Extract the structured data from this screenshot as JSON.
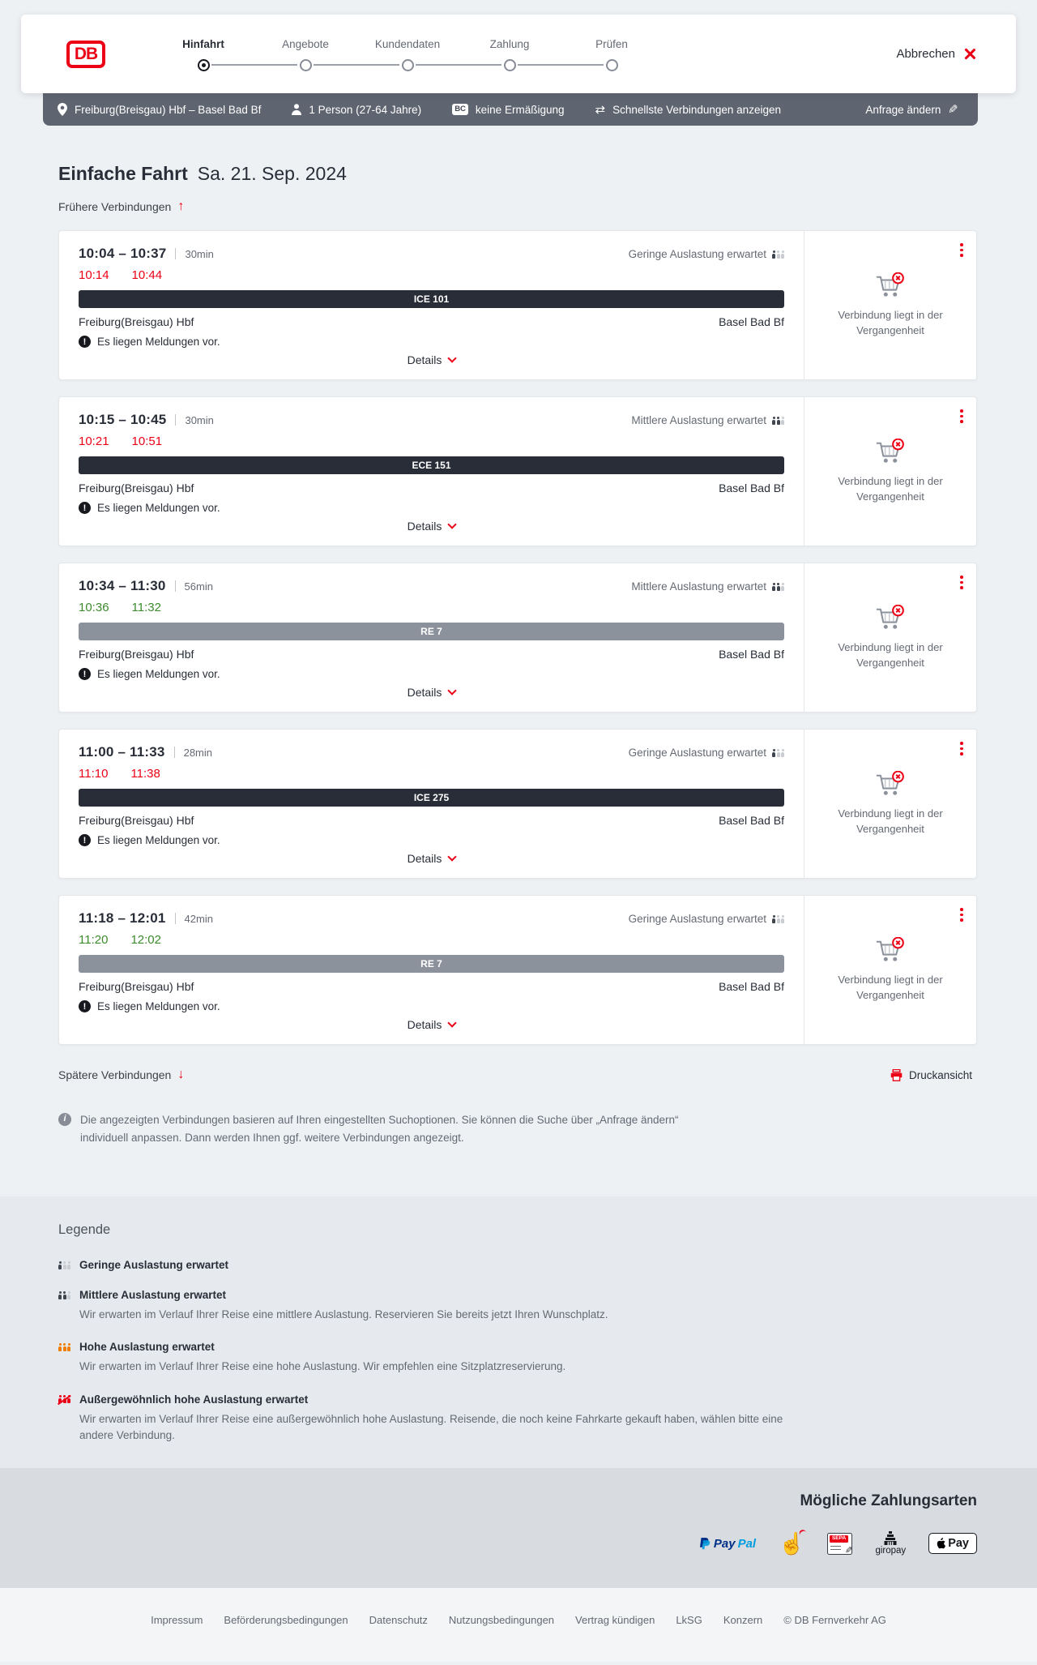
{
  "header": {
    "logo": "DB",
    "steps": [
      {
        "label": "Hinfahrt",
        "state": "active"
      },
      {
        "label": "Angebote",
        "state": "upcoming"
      },
      {
        "label": "Kundendaten",
        "state": "upcoming"
      },
      {
        "label": "Zahlung",
        "state": "upcoming"
      },
      {
        "label": "Prüfen",
        "state": "upcoming"
      }
    ],
    "cancel_label": "Abbrechen"
  },
  "tripbar": {
    "route": "Freiburg(Breisgau) Hbf – Basel Bad Bf",
    "passengers": "1 Person (27-64 Jahre)",
    "bc_badge": "BC",
    "discount": "keine Ermäßigung",
    "fastest": "Schnellste Verbindungen anzeigen",
    "change_request": "Anfrage ändern"
  },
  "results": {
    "title": "Einfache Fahrt",
    "date": "Sa. 21. Sep. 2024",
    "earlier": "Frühere Verbindungen",
    "later": "Spätere Verbindungen",
    "print": "Druckansicht",
    "info_note": "Die angezeigten Verbindungen basieren auf Ihren eingestellten Suchoptionen. Sie können die Suche über „Anfrage ändern“ individuell anpassen. Dann werden Ihnen ggf. weitere Verbindungen angezeigt."
  },
  "connections": [
    {
      "times": "10:04 – 10:37",
      "duration": "30min",
      "actual_dep": "10:14",
      "actual_arr": "10:44",
      "time_style": "t-red",
      "train": "ICE 101",
      "bar_style": "bar-dark",
      "from": "Freiburg(Breisgau) Hbf",
      "to": "Basel Bad Bf",
      "occupancy": "Geringe Auslastung erwartet",
      "occupancy_level": "occ-low",
      "message": "Es liegen Meldungen vor.",
      "details_label": "Details",
      "past_note": "Verbindung liegt in der Vergangenheit"
    },
    {
      "times": "10:15 – 10:45",
      "duration": "30min",
      "actual_dep": "10:21",
      "actual_arr": "10:51",
      "time_style": "t-red",
      "train": "ECE 151",
      "bar_style": "bar-dark",
      "from": "Freiburg(Breisgau) Hbf",
      "to": "Basel Bad Bf",
      "occupancy": "Mittlere Auslastung erwartet",
      "occupancy_level": "occ-medium",
      "message": "Es liegen Meldungen vor.",
      "details_label": "Details",
      "past_note": "Verbindung liegt in der Vergangenheit"
    },
    {
      "times": "10:34 – 11:30",
      "duration": "56min",
      "actual_dep": "10:36",
      "actual_arr": "11:32",
      "time_style": "t-green",
      "train": "RE 7",
      "bar_style": "bar-gray",
      "from": "Freiburg(Breisgau) Hbf",
      "to": "Basel Bad Bf",
      "occupancy": "Mittlere Auslastung erwartet",
      "occupancy_level": "occ-medium",
      "message": "Es liegen Meldungen vor.",
      "details_label": "Details",
      "past_note": "Verbindung liegt in der Vergangenheit"
    },
    {
      "times": "11:00 – 11:33",
      "duration": "28min",
      "actual_dep": "11:10",
      "actual_arr": "11:38",
      "time_style": "t-red",
      "train": "ICE 275",
      "bar_style": "bar-dark",
      "from": "Freiburg(Breisgau) Hbf",
      "to": "Basel Bad Bf",
      "occupancy": "Geringe Auslastung erwartet",
      "occupancy_level": "occ-low",
      "message": "Es liegen Meldungen vor.",
      "details_label": "Details",
      "past_note": "Verbindung liegt in der Vergangenheit"
    },
    {
      "times": "11:18 – 12:01",
      "duration": "42min",
      "actual_dep": "11:20",
      "actual_arr": "12:02",
      "time_style": "t-green",
      "train": "RE 7",
      "bar_style": "bar-gray",
      "from": "Freiburg(Breisgau) Hbf",
      "to": "Basel Bad Bf",
      "occupancy": "Geringe Auslastung erwartet",
      "occupancy_level": "occ-low",
      "message": "Es liegen Meldungen vor.",
      "details_label": "Details",
      "past_note": "Verbindung liegt in der Vergangenheit"
    }
  ],
  "legend": {
    "title": "Legende",
    "items": [
      {
        "label": "Geringe Auslastung erwartet",
        "description": "",
        "occupancy_level": "occ-low"
      },
      {
        "label": "Mittlere Auslastung erwartet",
        "description": "Wir erwarten im Verlauf Ihrer Reise eine mittlere Auslastung. Reservieren Sie bereits jetzt Ihren Wunschplatz.",
        "occupancy_level": "occ-medium"
      },
      {
        "label": "Hohe Auslastung erwartet",
        "description": "Wir erwarten im Verlauf Ihrer Reise eine hohe Auslastung. Wir empfehlen eine Sitzplatzreservierung.",
        "occupancy_level": "occ-high"
      },
      {
        "label": "Außergewöhnlich hohe Auslastung erwartet",
        "description": "Wir erwarten im Verlauf Ihrer Reise eine außergewöhnlich hohe Auslastung. Reisende, die noch keine Fahrkarte gekauft haben, wählen bitte eine andere Verbindung.",
        "occupancy_level": "occ-exceptional"
      }
    ]
  },
  "payment": {
    "title": "Mögliche Zahlungsarten",
    "methods": [
      "PayPal",
      "Rechnung",
      "SEPA-Lastschrift",
      "giropay",
      "Apple Pay"
    ],
    "logos": {
      "paypal_p1": "Pay",
      "paypal_p2": "Pal",
      "sepa": "SEPA",
      "giropay": "giropay",
      "apple_pay_word": "Pay"
    }
  },
  "footer": {
    "links": [
      "Impressum",
      "Beförderungsbedingungen",
      "Datenschutz",
      "Nutzungsbedingungen",
      "Vertrag kündigen",
      "LkSG",
      "Konzern"
    ],
    "copyright": "© DB Fernverkehr AG"
  },
  "icons": {
    "swap": "⇄",
    "pencil": "✎",
    "arrow_up": "↑",
    "arrow_down": "↓",
    "alert": "!",
    "info": "i",
    "sepa_pen": "✎",
    "hand": "☝"
  },
  "colors": {
    "db_red": "#ec0016",
    "dark": "#282d37",
    "gray": "#646973",
    "green": "#3c8a2c",
    "tripbar_bg": "#5f6570",
    "train_bar_dark": "#282d37",
    "train_bar_gray": "#8c929c",
    "page_bg": "#eef1f4",
    "legend_bg": "#e6eaee",
    "payment_bg": "#d8dce1",
    "occupancy_orange": "#f07d02"
  }
}
